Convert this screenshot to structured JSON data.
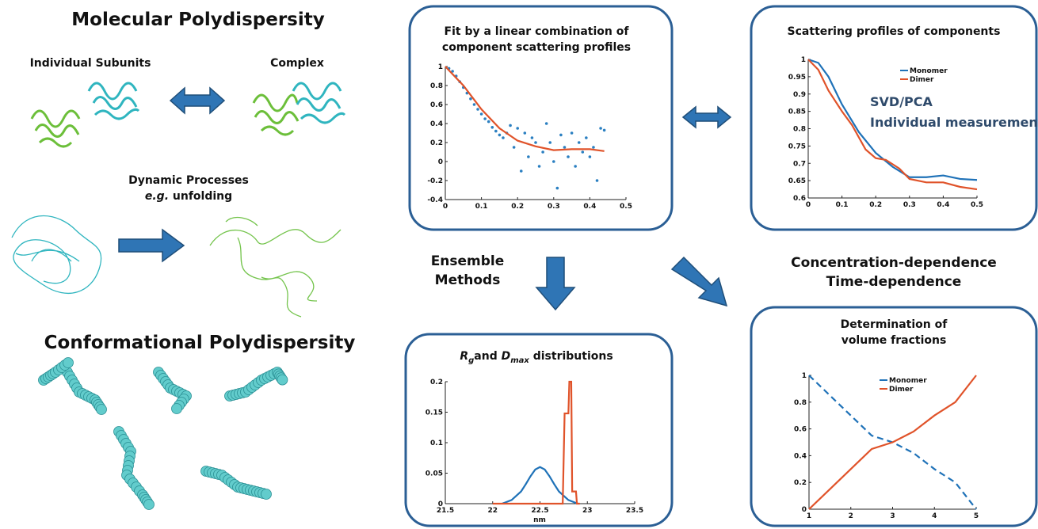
{
  "left": {
    "title": "Molecular Polydispersity",
    "subunits": "Individual Subunits",
    "complex": "Complex",
    "dynamic": "Dynamic Processes",
    "example": {
      "eg": "e.g.",
      "rest": " unfolding"
    },
    "conformational": "Conformational Polydispersity"
  },
  "middle": {
    "ensemble": [
      "Ensemble",
      "Methods"
    ]
  },
  "right": {
    "dependence": [
      "Concentration-dependence",
      "Time-dependence"
    ]
  },
  "charts": [
    {
      "type": "line",
      "title": [
        "Fit by a linear combination of",
        "component scattering profiles"
      ],
      "xlim": [
        0,
        0.5
      ],
      "ylim": [
        -0.4,
        1
      ],
      "xticks": [
        0,
        0.1,
        0.2,
        0.3,
        0.4,
        0.5
      ],
      "yticks": [
        -0.4,
        -0.2,
        0,
        0.2,
        0.4,
        0.6,
        0.8,
        1
      ],
      "series": [
        {
          "type": "scatter",
          "color": "#2a7fc1",
          "x": [
            0.01,
            0.02,
            0.03,
            0.04,
            0.05,
            0.06,
            0.07,
            0.08,
            0.09,
            0.1,
            0.11,
            0.12,
            0.13,
            0.14,
            0.15,
            0.16,
            0.17,
            0.18,
            0.19,
            0.2,
            0.21,
            0.22,
            0.23,
            0.24,
            0.25,
            0.26,
            0.27,
            0.28,
            0.29,
            0.3,
            0.31,
            0.32,
            0.33,
            0.34,
            0.35,
            0.36,
            0.37,
            0.38,
            0.39,
            0.4,
            0.41,
            0.42,
            0.43,
            0.44
          ],
          "values": [
            0.98,
            0.95,
            0.9,
            0.84,
            0.78,
            0.72,
            0.66,
            0.6,
            0.55,
            0.5,
            0.45,
            0.42,
            0.36,
            0.32,
            0.28,
            0.25,
            0.3,
            0.38,
            0.15,
            0.35,
            -0.1,
            0.3,
            0.05,
            0.25,
            0.2,
            -0.05,
            0.1,
            0.4,
            0.2,
            0.0,
            -0.28,
            0.28,
            0.15,
            0.05,
            0.3,
            -0.05,
            0.2,
            0.1,
            0.25,
            0.05,
            0.15,
            -0.2,
            0.35,
            0.33
          ]
        },
        {
          "type": "line",
          "color": "#e0532a",
          "x": [
            0,
            0.05,
            0.1,
            0.15,
            0.2,
            0.25,
            0.3,
            0.35,
            0.4,
            0.44
          ],
          "values": [
            1,
            0.8,
            0.55,
            0.35,
            0.22,
            0.16,
            0.12,
            0.13,
            0.13,
            0.11
          ]
        }
      ]
    },
    {
      "type": "line",
      "title": [
        "Scattering profiles of components"
      ],
      "annotations": [
        "SVD/PCA",
        "Individual measurements"
      ],
      "xlim": [
        0,
        0.5
      ],
      "ylim": [
        0.6,
        1
      ],
      "xticks": [
        0,
        0.1,
        0.2,
        0.3,
        0.4,
        0.5
      ],
      "yticks": [
        0.6,
        0.65,
        0.7,
        0.75,
        0.8,
        0.85,
        0.9,
        0.95,
        1
      ],
      "series": [
        {
          "name": "Monomer",
          "type": "line",
          "color": "#1f72b8",
          "x": [
            0,
            0.03,
            0.06,
            0.1,
            0.15,
            0.2,
            0.25,
            0.3,
            0.35,
            0.4,
            0.45,
            0.5
          ],
          "values": [
            1,
            0.99,
            0.95,
            0.87,
            0.79,
            0.73,
            0.69,
            0.66,
            0.66,
            0.665,
            0.655,
            0.652
          ]
        },
        {
          "name": "Dimer",
          "type": "line",
          "color": "#e0532a",
          "x": [
            0,
            0.03,
            0.06,
            0.1,
            0.13,
            0.17,
            0.2,
            0.23,
            0.27,
            0.3,
            0.35,
            0.4,
            0.45,
            0.5
          ],
          "values": [
            1,
            0.97,
            0.91,
            0.85,
            0.81,
            0.74,
            0.715,
            0.71,
            0.685,
            0.655,
            0.645,
            0.645,
            0.632,
            0.625
          ]
        }
      ]
    },
    {
      "type": "line",
      "title": [
        "R",
        "g",
        "and ",
        "D",
        "max",
        " distributions"
      ],
      "xlabel": "nm",
      "xlim": [
        21.5,
        23.5
      ],
      "ylim": [
        0,
        0.2
      ],
      "xticks": [
        21.5,
        22,
        22.5,
        23,
        23.5
      ],
      "yticks": [
        0,
        0.05,
        0.1,
        0.15,
        0.2
      ],
      "series": [
        {
          "type": "line",
          "color": "#1f72b8",
          "x": [
            22.1,
            22.2,
            22.3,
            22.35,
            22.4,
            22.45,
            22.5,
            22.55,
            22.6,
            22.65,
            22.7,
            22.8,
            22.9
          ],
          "values": [
            0,
            0.006,
            0.02,
            0.032,
            0.045,
            0.056,
            0.06,
            0.056,
            0.045,
            0.032,
            0.02,
            0.006,
            0
          ]
        },
        {
          "type": "line",
          "color": "#e0532a",
          "x": [
            22,
            22.74,
            22.76,
            22.8,
            22.81,
            22.83,
            22.84,
            22.88,
            22.89,
            22.92
          ],
          "values": [
            0,
            0,
            0.148,
            0.148,
            0.2,
            0.2,
            0.02,
            0.02,
            0,
            0
          ]
        }
      ]
    },
    {
      "type": "line",
      "title": [
        "Determination of",
        "volume fractions"
      ],
      "xlim": [
        1,
        5
      ],
      "ylim": [
        0,
        1
      ],
      "xticks": [
        1,
        2,
        3,
        4,
        5
      ],
      "yticks": [
        0,
        0.2,
        0.4,
        0.6,
        0.8,
        1
      ],
      "series": [
        {
          "name": "Monomer",
          "type": "line",
          "dash": true,
          "color": "#1f72b8",
          "x": [
            1,
            1.5,
            2,
            2.5,
            3,
            3.5,
            4,
            4.5,
            5
          ],
          "values": [
            1,
            0.85,
            0.7,
            0.55,
            0.5,
            0.42,
            0.3,
            0.2,
            0
          ]
        },
        {
          "name": "Dimer",
          "type": "line",
          "color": "#e0532a",
          "x": [
            1,
            1.5,
            2,
            2.5,
            3,
            3.5,
            4,
            4.5,
            5
          ],
          "values": [
            0,
            0.15,
            0.3,
            0.45,
            0.5,
            0.58,
            0.7,
            0.8,
            1
          ]
        }
      ]
    }
  ]
}
